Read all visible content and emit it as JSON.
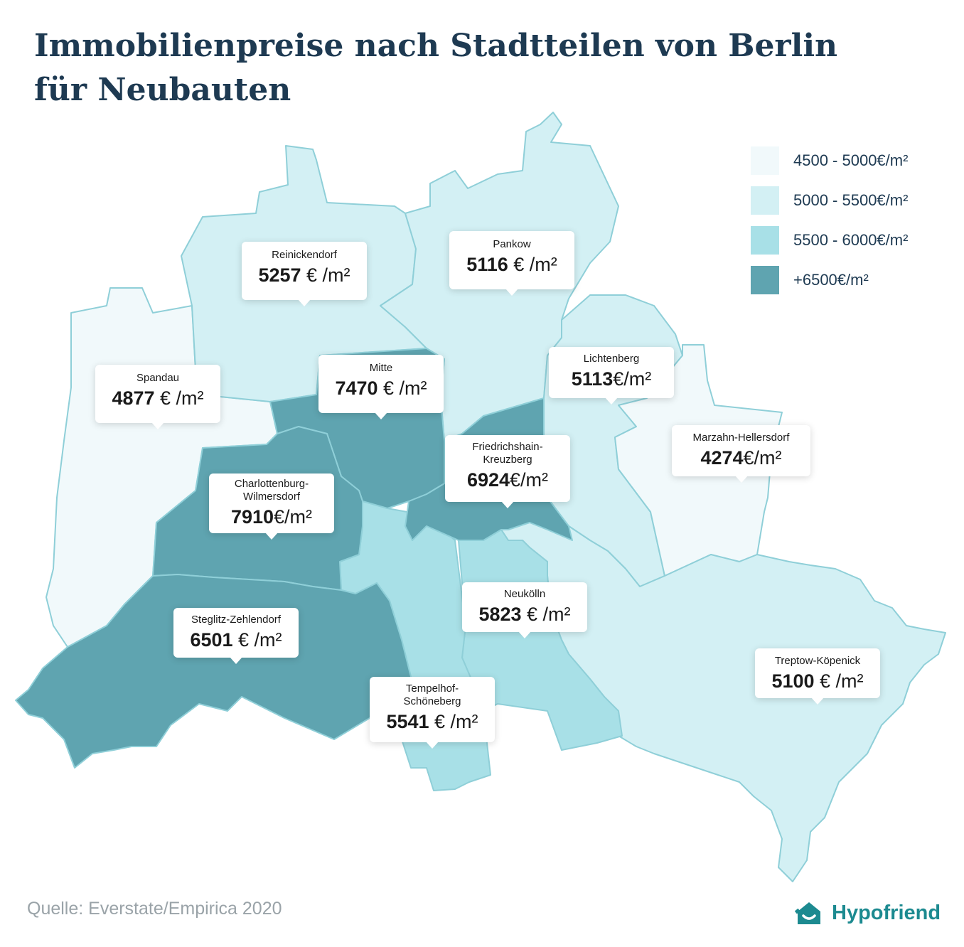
{
  "title_line1": "Immobilienpreise nach Stadtteilen von Berlin",
  "title_line2": "für Neubauten",
  "legend": [
    {
      "label": "4500 - 5000€/m²",
      "color": "#f1f9fb"
    },
    {
      "label": "5000 - 5500€/m²",
      "color": "#d3f0f4"
    },
    {
      "label": "5500 - 6000€/m²",
      "color": "#a8e0e7"
    },
    {
      "label": "+6500€/m²",
      "color": "#5fa4b0"
    }
  ],
  "districts": [
    {
      "name": "Reinickendorf",
      "price": "5257",
      "unit": "€ /m²"
    },
    {
      "name": "Pankow",
      "price": "5116",
      "unit": "€ /m²"
    },
    {
      "name": "Spandau",
      "price": "4877",
      "unit": "€ /m²"
    },
    {
      "name": "Mitte",
      "price": "7470",
      "unit": "€ /m²"
    },
    {
      "name": "Lichtenberg",
      "price": "5113",
      "unit": "€/m²"
    },
    {
      "name": "Friedrichshain-",
      "name2": "Kreuzberg",
      "price": "6924",
      "unit": "€/m²"
    },
    {
      "name": "Marzahn-Hellersdorf",
      "price": "4274",
      "unit": "€/m²"
    },
    {
      "name": "Charlottenburg-",
      "name2": "Wilmersdorf",
      "price": "7910",
      "unit": "€/m²"
    },
    {
      "name": "Neukölln",
      "price": "5823",
      "unit": "€ /m²"
    },
    {
      "name": "Steglitz-Zehlendorf",
      "price": "6501",
      "unit": "€ /m²"
    },
    {
      "name": "Treptow-Köpenick",
      "price": "5100",
      "unit": "€ /m²"
    },
    {
      "name": "Tempelhof-",
      "name2": "Schöneberg",
      "price": "5541",
      "unit": "€ /m²"
    }
  ],
  "source": "Quelle: Everstate/Empirica 2020",
  "brand": "Hypofriend",
  "icons": {
    "brand_logo": "house-smile-icon"
  }
}
